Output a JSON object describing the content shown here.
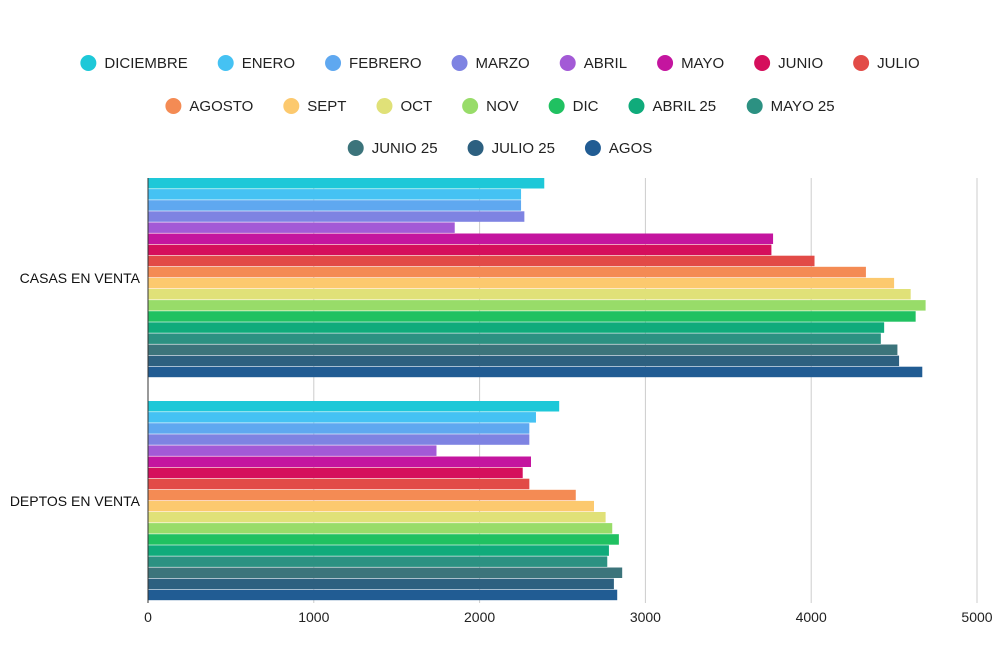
{
  "chart_data": {
    "type": "bar",
    "orientation": "horizontal",
    "categories": [
      "CASAS EN VENTA",
      "DEPTOS EN VENTA"
    ],
    "xlim": [
      0,
      5000
    ],
    "xticks": [
      0,
      1000,
      2000,
      3000,
      4000,
      5000
    ],
    "grid": true,
    "legend_position": "top",
    "series": [
      {
        "name": "DICIEMBRE",
        "color": "#1ec8d8",
        "values": [
          2390,
          2480
        ]
      },
      {
        "name": "ENERO",
        "color": "#45c2f3",
        "values": [
          2250,
          2340
        ]
      },
      {
        "name": "FEBRERO",
        "color": "#5fa8f0",
        "values": [
          2250,
          2300
        ]
      },
      {
        "name": "MARZO",
        "color": "#7e83e2",
        "values": [
          2270,
          2300
        ]
      },
      {
        "name": "ABRIL",
        "color": "#a35ad6",
        "values": [
          1850,
          1740
        ]
      },
      {
        "name": "MAYO",
        "color": "#c4159f",
        "values": [
          3770,
          2310
        ]
      },
      {
        "name": "JUNIO",
        "color": "#d50f5c",
        "values": [
          3760,
          2260
        ]
      },
      {
        "name": "JULIO",
        "color": "#e24b47",
        "values": [
          4020,
          2300
        ]
      },
      {
        "name": "AGOSTO",
        "color": "#f48b54",
        "values": [
          4330,
          2580
        ]
      },
      {
        "name": "SEPT",
        "color": "#fcc96e",
        "values": [
          4500,
          2690
        ]
      },
      {
        "name": "OCT",
        "color": "#e0e178",
        "values": [
          4600,
          2760
        ]
      },
      {
        "name": "NOV",
        "color": "#98dc69",
        "values": [
          4690,
          2800
        ]
      },
      {
        "name": "DIC",
        "color": "#20c161",
        "values": [
          4630,
          2840
        ]
      },
      {
        "name": "ABRIL 25",
        "color": "#10ab7b",
        "values": [
          4440,
          2780
        ]
      },
      {
        "name": "MAYO 25",
        "color": "#2c9182",
        "values": [
          4420,
          2770
        ]
      },
      {
        "name": "JUNIO 25",
        "color": "#3c747b",
        "values": [
          4520,
          2860
        ]
      },
      {
        "name": "JULIO 25",
        "color": "#2d6080",
        "values": [
          4530,
          2810
        ]
      },
      {
        "name": "AGOS",
        "color": "#215c93",
        "values": [
          4670,
          2830
        ]
      }
    ]
  }
}
